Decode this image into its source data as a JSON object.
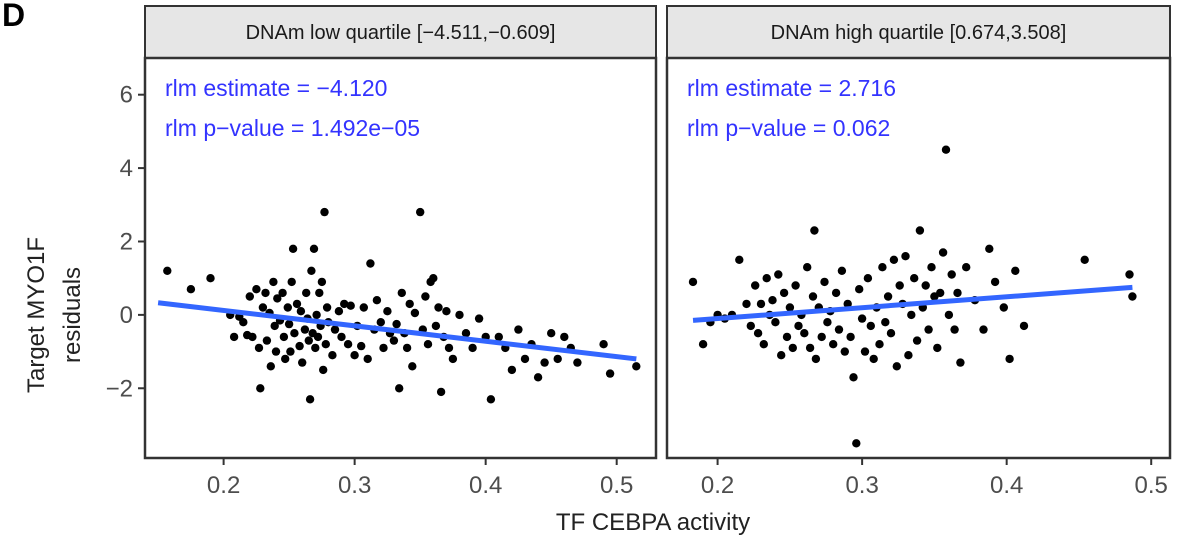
{
  "panel_label": "D",
  "chart_data": [
    {
      "type": "scatter",
      "strip_title": "DNAm low quartile [−4.511,−0.609]",
      "annotations": [
        "rlm estimate = −4.120",
        "rlm p−value  = 1.492e−05"
      ],
      "xlabel": "TF CEBPA  activity",
      "ylabel": "Target MYO1F residuals",
      "xlim": [
        0.14,
        0.53
      ],
      "ylim": [
        -3.9,
        7.0
      ],
      "x_ticks": [
        0.2,
        0.3,
        0.4,
        0.5
      ],
      "x_tick_labels": [
        "0.2",
        "0.3",
        "0.4",
        "0.5"
      ],
      "y_ticks": [
        -2,
        0,
        2,
        4,
        6
      ],
      "y_tick_labels": [
        "−2",
        "0",
        "2",
        "4",
        "6"
      ],
      "point_color": "#000000",
      "fit_color": "#3366ff",
      "annotation_color": "#3333ff",
      "fit_line": {
        "x": [
          0.15,
          0.515
        ],
        "y": [
          0.33,
          -1.2
        ]
      },
      "points": [
        [
          0.157,
          1.2
        ],
        [
          0.175,
          0.7
        ],
        [
          0.19,
          1.0
        ],
        [
          0.205,
          0.0
        ],
        [
          0.208,
          -0.6
        ],
        [
          0.212,
          -0.05
        ],
        [
          0.215,
          -0.2
        ],
        [
          0.218,
          -0.55
        ],
        [
          0.22,
          0.5
        ],
        [
          0.222,
          -0.6
        ],
        [
          0.225,
          0.7
        ],
        [
          0.227,
          -0.9
        ],
        [
          0.228,
          -2.0
        ],
        [
          0.23,
          0.2
        ],
        [
          0.232,
          0.6
        ],
        [
          0.233,
          -0.7
        ],
        [
          0.235,
          0.05
        ],
        [
          0.236,
          -1.4
        ],
        [
          0.238,
          0.9
        ],
        [
          0.239,
          -0.3
        ],
        [
          0.24,
          -1.0
        ],
        [
          0.241,
          0.45
        ],
        [
          0.243,
          -0.15
        ],
        [
          0.245,
          0.6
        ],
        [
          0.246,
          -0.6
        ],
        [
          0.247,
          -1.2
        ],
        [
          0.249,
          0.2
        ],
        [
          0.25,
          -0.25
        ],
        [
          0.251,
          -1.0
        ],
        [
          0.252,
          0.9
        ],
        [
          0.253,
          1.8
        ],
        [
          0.254,
          -0.5
        ],
        [
          0.256,
          0.3
        ],
        [
          0.258,
          -0.85
        ],
        [
          0.259,
          0.1
        ],
        [
          0.26,
          -1.3
        ],
        [
          0.262,
          -0.4
        ],
        [
          0.263,
          0.6
        ],
        [
          0.264,
          -0.1
        ],
        [
          0.265,
          -0.7
        ],
        [
          0.266,
          -2.3
        ],
        [
          0.267,
          1.2
        ],
        [
          0.268,
          -0.5
        ],
        [
          0.269,
          1.8
        ],
        [
          0.27,
          -0.9
        ],
        [
          0.271,
          0.0
        ],
        [
          0.272,
          -0.6
        ],
        [
          0.273,
          0.6
        ],
        [
          0.274,
          -0.3
        ],
        [
          0.275,
          0.9
        ],
        [
          0.276,
          -1.5
        ],
        [
          0.277,
          2.8
        ],
        [
          0.278,
          -0.8
        ],
        [
          0.279,
          0.2
        ],
        [
          0.28,
          -0.2
        ],
        [
          0.283,
          -1.1
        ],
        [
          0.285,
          -0.4
        ],
        [
          0.288,
          0.1
        ],
        [
          0.29,
          -0.6
        ],
        [
          0.292,
          0.3
        ],
        [
          0.295,
          -0.8
        ],
        [
          0.297,
          0.25
        ],
        [
          0.3,
          -1.1
        ],
        [
          0.302,
          -0.3
        ],
        [
          0.305,
          -0.85
        ],
        [
          0.307,
          0.2
        ],
        [
          0.31,
          -1.2
        ],
        [
          0.312,
          1.4
        ],
        [
          0.315,
          -0.4
        ],
        [
          0.317,
          0.4
        ],
        [
          0.32,
          -0.2
        ],
        [
          0.322,
          -0.9
        ],
        [
          0.325,
          0.1
        ],
        [
          0.327,
          -0.5
        ],
        [
          0.33,
          -0.7
        ],
        [
          0.332,
          -0.25
        ],
        [
          0.334,
          -2.0
        ],
        [
          0.336,
          0.6
        ],
        [
          0.338,
          -0.5
        ],
        [
          0.34,
          -0.9
        ],
        [
          0.342,
          0.3
        ],
        [
          0.344,
          -1.4
        ],
        [
          0.346,
          0.05
        ],
        [
          0.35,
          2.8
        ],
        [
          0.352,
          -0.4
        ],
        [
          0.354,
          0.5
        ],
        [
          0.356,
          -0.8
        ],
        [
          0.358,
          0.9
        ],
        [
          0.36,
          1.0
        ],
        [
          0.362,
          -0.3
        ],
        [
          0.364,
          0.2
        ],
        [
          0.366,
          -2.1
        ],
        [
          0.368,
          -0.6
        ],
        [
          0.37,
          0.1
        ],
        [
          0.372,
          -0.9
        ],
        [
          0.375,
          -1.2
        ],
        [
          0.38,
          0.0
        ],
        [
          0.385,
          -0.5
        ],
        [
          0.39,
          -0.9
        ],
        [
          0.395,
          -0.1
        ],
        [
          0.4,
          -0.6
        ],
        [
          0.404,
          -2.3
        ],
        [
          0.41,
          -0.6
        ],
        [
          0.415,
          -0.9
        ],
        [
          0.42,
          -1.5
        ],
        [
          0.425,
          -0.4
        ],
        [
          0.43,
          -1.2
        ],
        [
          0.435,
          -0.8
        ],
        [
          0.44,
          -1.7
        ],
        [
          0.445,
          -1.3
        ],
        [
          0.45,
          -0.5
        ],
        [
          0.455,
          -1.2
        ],
        [
          0.46,
          -0.6
        ],
        [
          0.465,
          -0.9
        ],
        [
          0.47,
          -1.3
        ],
        [
          0.49,
          -0.8
        ],
        [
          0.495,
          -1.6
        ],
        [
          0.515,
          -1.4
        ]
      ]
    },
    {
      "type": "scatter",
      "strip_title": "DNAm high quartile [0.674,3.508]",
      "annotations": [
        "rlm estimate = 2.716",
        "rlm p−value = 0.062"
      ],
      "xlabel": "TF CEBPA  activity",
      "ylabel": "Target MYO1F residuals",
      "xlim": [
        0.165,
        0.513
      ],
      "ylim": [
        -3.9,
        7.0
      ],
      "x_ticks": [
        0.2,
        0.3,
        0.4,
        0.5
      ],
      "x_tick_labels": [
        "0.2",
        "0.3",
        "0.4",
        "0.5"
      ],
      "point_color": "#000000",
      "fit_color": "#3366ff",
      "annotation_color": "#3333ff",
      "fit_line": {
        "x": [
          0.183,
          0.487
        ],
        "y": [
          -0.15,
          0.75
        ]
      },
      "points": [
        [
          0.183,
          0.9
        ],
        [
          0.19,
          -0.8
        ],
        [
          0.195,
          -0.2
        ],
        [
          0.2,
          0.0
        ],
        [
          0.205,
          -0.1
        ],
        [
          0.21,
          0.0
        ],
        [
          0.215,
          1.5
        ],
        [
          0.22,
          0.3
        ],
        [
          0.223,
          -0.3
        ],
        [
          0.226,
          0.8
        ],
        [
          0.228,
          -0.5
        ],
        [
          0.23,
          0.3
        ],
        [
          0.232,
          -0.8
        ],
        [
          0.234,
          1.0
        ],
        [
          0.236,
          0.0
        ],
        [
          0.238,
          0.4
        ],
        [
          0.24,
          -0.2
        ],
        [
          0.242,
          1.1
        ],
        [
          0.244,
          -1.1
        ],
        [
          0.246,
          0.6
        ],
        [
          0.248,
          -0.6
        ],
        [
          0.25,
          0.2
        ],
        [
          0.252,
          -0.9
        ],
        [
          0.254,
          0.8
        ],
        [
          0.256,
          -0.3
        ],
        [
          0.258,
          0.0
        ],
        [
          0.26,
          -0.5
        ],
        [
          0.262,
          1.3
        ],
        [
          0.264,
          -0.9
        ],
        [
          0.266,
          0.5
        ],
        [
          0.267,
          2.3
        ],
        [
          0.268,
          -1.2
        ],
        [
          0.27,
          0.2
        ],
        [
          0.272,
          -0.6
        ],
        [
          0.274,
          0.9
        ],
        [
          0.276,
          -0.2
        ],
        [
          0.278,
          0.1
        ],
        [
          0.28,
          -0.8
        ],
        [
          0.282,
          0.6
        ],
        [
          0.284,
          -0.4
        ],
        [
          0.286,
          1.2
        ],
        [
          0.288,
          -1.0
        ],
        [
          0.29,
          0.3
        ],
        [
          0.292,
          -0.6
        ],
        [
          0.294,
          -1.7
        ],
        [
          0.296,
          -3.5
        ],
        [
          0.298,
          0.7
        ],
        [
          0.3,
          -0.1
        ],
        [
          0.302,
          -1.0
        ],
        [
          0.304,
          1.0
        ],
        [
          0.306,
          -0.3
        ],
        [
          0.308,
          -1.2
        ],
        [
          0.31,
          0.2
        ],
        [
          0.312,
          -0.8
        ],
        [
          0.314,
          1.3
        ],
        [
          0.316,
          -0.2
        ],
        [
          0.318,
          0.5
        ],
        [
          0.32,
          -0.5
        ],
        [
          0.322,
          1.5
        ],
        [
          0.324,
          -1.4
        ],
        [
          0.326,
          0.8
        ],
        [
          0.328,
          0.3
        ],
        [
          0.33,
          1.6
        ],
        [
          0.332,
          -1.1
        ],
        [
          0.334,
          0.0
        ],
        [
          0.336,
          1.0
        ],
        [
          0.338,
          -0.7
        ],
        [
          0.34,
          2.3
        ],
        [
          0.342,
          0.2
        ],
        [
          0.344,
          0.8
        ],
        [
          0.346,
          -0.4
        ],
        [
          0.348,
          1.3
        ],
        [
          0.35,
          0.5
        ],
        [
          0.352,
          -0.9
        ],
        [
          0.354,
          0.6
        ],
        [
          0.356,
          1.7
        ],
        [
          0.358,
          4.5
        ],
        [
          0.36,
          0.0
        ],
        [
          0.362,
          1.1
        ],
        [
          0.364,
          -0.4
        ],
        [
          0.366,
          0.6
        ],
        [
          0.368,
          -1.3
        ],
        [
          0.372,
          1.3
        ],
        [
          0.378,
          0.4
        ],
        [
          0.384,
          -0.4
        ],
        [
          0.388,
          1.8
        ],
        [
          0.392,
          0.9
        ],
        [
          0.398,
          0.2
        ],
        [
          0.402,
          -1.2
        ],
        [
          0.406,
          1.2
        ],
        [
          0.412,
          -0.3
        ],
        [
          0.454,
          1.5
        ],
        [
          0.485,
          1.1
        ],
        [
          0.487,
          0.5
        ]
      ]
    }
  ]
}
